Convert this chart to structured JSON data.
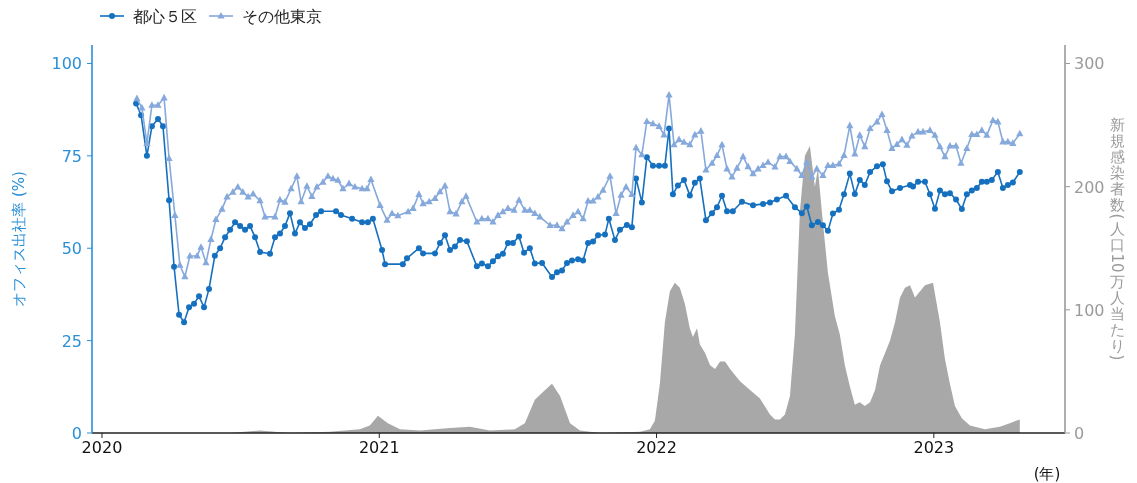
{
  "chart_data": {
    "type": "line",
    "xlim": [
      2019.964,
      2023.473
    ],
    "xticks": [
      2020,
      2021,
      2022,
      2023
    ],
    "ylim": [
      0,
      105
    ],
    "yticks": [
      0,
      25,
      50,
      75,
      100
    ],
    "y2lim": [
      0,
      315
    ],
    "y2ticks": [
      0,
      100,
      200,
      300
    ],
    "xlabel": "(年)",
    "ylabel": "オフィス出社率 (%)",
    "y2label": "新規感染者数(人口10万人当たり)",
    "legend": "top left",
    "grid": false,
    "line_style": "solid",
    "series": [
      {
        "name": "都心５区",
        "color": "#1570bf",
        "marker": "circle",
        "x": [
          2020.123,
          2020.141,
          2020.162,
          2020.18,
          2020.202,
          2020.22,
          2020.242,
          2020.26,
          2020.278,
          2020.296,
          2020.314,
          2020.332,
          2020.35,
          2020.368,
          2020.386,
          2020.407,
          2020.426,
          2020.444,
          2020.462,
          2020.48,
          2020.498,
          2020.516,
          2020.534,
          2020.552,
          2020.57,
          2020.606,
          2020.624,
          2020.642,
          2020.66,
          2020.678,
          2020.696,
          2020.714,
          2020.732,
          2020.75,
          2020.772,
          2020.79,
          2020.844,
          2020.862,
          2020.902,
          2020.938,
          2020.959,
          2020.977,
          2021.01,
          2021.021,
          2021.085,
          2021.1,
          2021.143,
          2021.158,
          2021.201,
          2021.219,
          2021.237,
          2021.255,
          2021.273,
          2021.291,
          2021.316,
          2021.352,
          2021.37,
          2021.392,
          2021.41,
          2021.428,
          2021.446,
          2021.464,
          2021.482,
          2021.504,
          2021.522,
          2021.543,
          2021.561,
          2021.587,
          2021.623,
          2021.641,
          2021.659,
          2021.677,
          2021.695,
          2021.717,
          2021.735,
          2021.753,
          2021.771,
          2021.789,
          2021.814,
          2021.828,
          2021.85,
          2021.868,
          2021.893,
          2021.911,
          2021.926,
          2021.947,
          2021.965,
          2021.987,
          2022.009,
          2022.03,
          2022.045,
          2022.059,
          2022.077,
          2022.099,
          2022.12,
          2022.138,
          2022.156,
          2022.178,
          2022.2,
          2022.218,
          2022.236,
          2022.254,
          2022.275,
          2022.308,
          2022.348,
          2022.384,
          2022.409,
          2022.434,
          2022.467,
          2022.499,
          2022.524,
          2022.542,
          2022.56,
          2022.582,
          2022.6,
          2022.618,
          2022.636,
          2022.658,
          2022.676,
          2022.697,
          2022.715,
          2022.733,
          2022.751,
          2022.77,
          2022.795,
          2022.816,
          2022.831,
          2022.849,
          2022.878,
          2022.914,
          2022.925,
          2022.943,
          2022.968,
          2022.986,
          2023.004,
          2023.022,
          2023.04,
          2023.058,
          2023.08,
          2023.101,
          2023.119,
          2023.137,
          2023.155,
          2023.173,
          2023.191,
          2023.209,
          2023.231,
          2023.249,
          2023.267,
          2023.285,
          2023.31
        ],
        "values": [
          89.2,
          86,
          75,
          83,
          85,
          83,
          63,
          45,
          32,
          30,
          34,
          35,
          37,
          34,
          39,
          48,
          50,
          53,
          55,
          57,
          56,
          55,
          56,
          53,
          49,
          48.5,
          53,
          54,
          56,
          59.5,
          54,
          57,
          55.5,
          56.5,
          59,
          60,
          60,
          59,
          58,
          57,
          57,
          58,
          49.5,
          45.7,
          45.7,
          47.3,
          50,
          48.6,
          48.6,
          51.4,
          53.5,
          49.5,
          50.5,
          52.2,
          51.9,
          45.1,
          45.9,
          45.1,
          46.5,
          47.8,
          48.5,
          51.4,
          51.4,
          53.2,
          48.8,
          50,
          45.9,
          46,
          42.2,
          43.5,
          44,
          46,
          46.7,
          47,
          46.7,
          51.4,
          51.8,
          53.5,
          53.7,
          58,
          52.2,
          55,
          56.3,
          55.7,
          68.9,
          62.4,
          74.6,
          72.3,
          72.3,
          72.3,
          82.4,
          64.6,
          67,
          68.5,
          64.3,
          67.7,
          68.9,
          57.6,
          59.5,
          61.1,
          64.2,
          60,
          60,
          62.6,
          61.6,
          62,
          62.4,
          63.2,
          64.2,
          61.1,
          59.5,
          61.3,
          56.2,
          57.1,
          56.2,
          54.7,
          59.4,
          60.4,
          64.6,
          70.2,
          64.7,
          68.5,
          67.1,
          70.6,
          72.2,
          72.7,
          68.1,
          65.4,
          66.3,
          67.1,
          66.7,
          68,
          68,
          64.6,
          60.7,
          65.6,
          64.6,
          64.9,
          63.2,
          60.6,
          64.6,
          65.6,
          66.3,
          68,
          68,
          68.5,
          70.6,
          66.3,
          67.1,
          67.8,
          70.6
        ]
      },
      {
        "name": "その他東京",
        "color": "#86a9dc",
        "marker": "triangle",
        "x": [
          2020.126,
          2020.144,
          2020.162,
          2020.18,
          2020.202,
          2020.224,
          2020.242,
          2020.263,
          2020.281,
          2020.299,
          2020.317,
          2020.343,
          2020.357,
          2020.375,
          2020.393,
          2020.411,
          2020.433,
          2020.451,
          2020.472,
          2020.49,
          2020.508,
          2020.527,
          2020.545,
          2020.57,
          2020.588,
          2020.624,
          2020.642,
          2020.66,
          2020.682,
          2020.703,
          2020.718,
          2020.739,
          2020.757,
          2020.775,
          2020.797,
          2020.815,
          2020.833,
          2020.851,
          2020.869,
          2020.891,
          2020.912,
          2020.938,
          2020.956,
          2020.97,
          2021.003,
          2021.028,
          2021.046,
          2021.067,
          2021.104,
          2021.122,
          2021.143,
          2021.158,
          2021.18,
          2021.201,
          2021.219,
          2021.237,
          2021.255,
          2021.277,
          2021.298,
          2021.313,
          2021.352,
          2021.37,
          2021.392,
          2021.41,
          2021.428,
          2021.446,
          2021.464,
          2021.486,
          2021.504,
          2021.525,
          2021.543,
          2021.561,
          2021.579,
          2021.616,
          2021.641,
          2021.659,
          2021.677,
          2021.699,
          2021.717,
          2021.735,
          2021.753,
          2021.771,
          2021.789,
          2021.807,
          2021.832,
          2021.854,
          2021.872,
          2021.89,
          2021.911,
          2021.926,
          2021.947,
          2021.965,
          2021.987,
          2022.009,
          2022.027,
          2022.045,
          2022.063,
          2022.081,
          2022.099,
          2022.12,
          2022.138,
          2022.16,
          2022.178,
          2022.2,
          2022.218,
          2022.236,
          2022.254,
          2022.272,
          2022.29,
          2022.312,
          2022.33,
          2022.348,
          2022.366,
          2022.384,
          2022.402,
          2022.427,
          2022.445,
          2022.467,
          2022.481,
          2022.506,
          2022.524,
          2022.542,
          2022.56,
          2022.578,
          2022.6,
          2022.618,
          2022.636,
          2022.658,
          2022.676,
          2022.697,
          2022.715,
          2022.733,
          2022.751,
          2022.77,
          2022.795,
          2022.813,
          2022.831,
          2022.849,
          2022.867,
          2022.885,
          2022.903,
          2022.921,
          2022.943,
          2022.961,
          2022.986,
          2023.004,
          2023.022,
          2023.04,
          2023.058,
          2023.08,
          2023.098,
          2023.119,
          2023.137,
          2023.155,
          2023.173,
          2023.191,
          2023.213,
          2023.231,
          2023.249,
          2023.267,
          2023.285,
          2023.31
        ],
        "values": [
          90.5,
          88,
          78.4,
          88.7,
          88.7,
          90.7,
          74.3,
          58.9,
          45.4,
          42.3,
          47.9,
          47.9,
          50.3,
          46.1,
          52.4,
          57.8,
          60.6,
          63.9,
          65.2,
          66.6,
          65.2,
          63.9,
          64.7,
          62.9,
          58.5,
          58.5,
          63.1,
          62.5,
          66.1,
          69.5,
          62.6,
          66.8,
          64,
          66.6,
          67.9,
          69.5,
          68.8,
          68.4,
          66.1,
          67.5,
          66.6,
          66.1,
          66.1,
          68.6,
          61.6,
          57.6,
          59.4,
          58.8,
          59.9,
          60.8,
          64.6,
          62.1,
          62.6,
          63.5,
          65.3,
          66.9,
          59.9,
          59.3,
          62.6,
          64.1,
          57.1,
          58,
          58,
          57.1,
          58.9,
          59.9,
          60.8,
          60.3,
          63,
          60.3,
          60.3,
          59.4,
          58.5,
          56.2,
          56.2,
          55.3,
          57.1,
          58.9,
          59.9,
          58,
          62.8,
          62.8,
          63.9,
          65.7,
          69.5,
          59.4,
          64.4,
          66.6,
          64.6,
          77.2,
          75.3,
          84.3,
          83.7,
          83,
          80.7,
          91.5,
          78,
          79.4,
          78.7,
          78,
          80.7,
          81.7,
          71.2,
          73,
          75.1,
          78,
          71.5,
          69.3,
          71.7,
          74.8,
          72.1,
          70.2,
          71.5,
          72.4,
          73.3,
          72,
          74.8,
          74.8,
          73.5,
          71.5,
          69.7,
          73.3,
          69.3,
          71.5,
          69.7,
          72.4,
          72.4,
          72.8,
          75.1,
          83.2,
          75.5,
          80.6,
          77.5,
          82.4,
          84.2,
          86.2,
          81.9,
          77,
          78.1,
          79.4,
          77.9,
          80.4,
          81.5,
          81.5,
          81.9,
          80.6,
          77.5,
          74.8,
          77.7,
          77.7,
          73,
          77,
          80.8,
          80.8,
          81.9,
          80.6,
          84.6,
          84.2,
          78.8,
          78.8,
          78.4,
          81
        ]
      },
      {
        "type": "area",
        "axis": "y2",
        "color": "#a8a8a8",
        "x": [
          2020.123,
          2020.462,
          2020.57,
          2020.678,
          2020.822,
          2020.93,
          2020.966,
          2020.995,
          2021.031,
          2021.075,
          2021.147,
          2021.255,
          2021.327,
          2021.399,
          2021.489,
          2021.525,
          2021.561,
          2021.598,
          2021.623,
          2021.652,
          2021.688,
          2021.724,
          2021.796,
          2021.94,
          2021.976,
          2021.994,
          2022.012,
          2022.03,
          2022.048,
          2022.066,
          2022.084,
          2022.102,
          2022.12,
          2022.131,
          2022.146,
          2022.156,
          2022.175,
          2022.193,
          2022.211,
          2022.229,
          2022.247,
          2022.265,
          2022.301,
          2022.337,
          2022.373,
          2022.409,
          2022.427,
          2022.445,
          2022.463,
          2022.481,
          2022.499,
          2022.517,
          2022.535,
          2022.553,
          2022.571,
          2022.582,
          2022.596,
          2022.618,
          2022.643,
          2022.661,
          2022.679,
          2022.697,
          2022.715,
          2022.733,
          2022.751,
          2022.77,
          2022.788,
          2022.806,
          2022.824,
          2022.842,
          2022.86,
          2022.878,
          2022.896,
          2022.914,
          2022.932,
          2022.968,
          2022.997,
          2023.022,
          2023.04,
          2023.058,
          2023.076,
          2023.101,
          2023.13,
          2023.184,
          2023.238,
          2023.274,
          2023.31
        ],
        "values": [
          0,
          0,
          2,
          0,
          1,
          3,
          6,
          14,
          8,
          3,
          2,
          4,
          5,
          2,
          3,
          8,
          27,
          35,
          40,
          30,
          8,
          2,
          0,
          1,
          3,
          10,
          40,
          90,
          115,
          122,
          118,
          105,
          85,
          78,
          85,
          72,
          65,
          55,
          52,
          58,
          58,
          52,
          42,
          35,
          28,
          15,
          11,
          11,
          15,
          30,
          80,
          180,
          225,
          233,
          200,
          215,
          180,
          130,
          95,
          80,
          55,
          38,
          23,
          25,
          22,
          25,
          35,
          55,
          65,
          75,
          90,
          110,
          118,
          120,
          110,
          120,
          122,
          90,
          60,
          40,
          22,
          12,
          6,
          3,
          5,
          8,
          11
        ]
      }
    ]
  }
}
